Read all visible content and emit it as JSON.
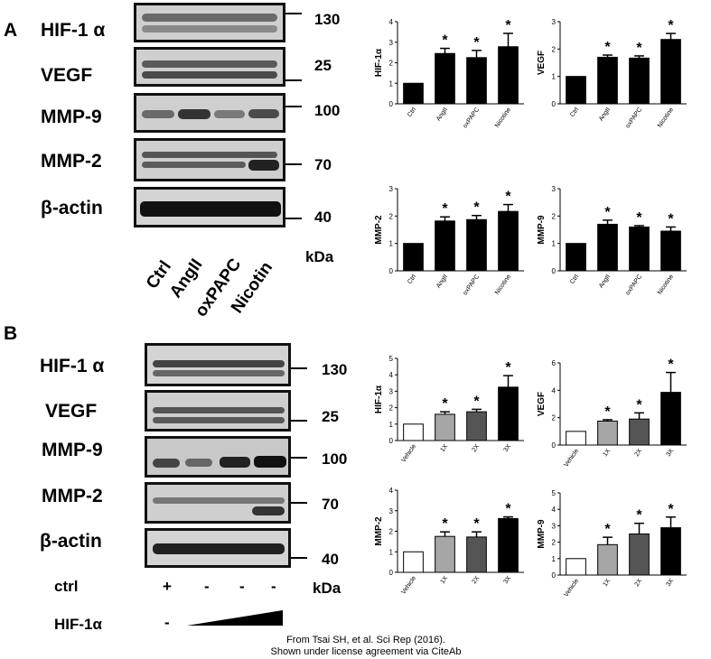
{
  "panels": {
    "a": {
      "letter": "A",
      "proteins": [
        "HIF-1 α",
        "VEGF",
        "MMP-9",
        "MMP-2",
        "β-actin"
      ],
      "markers": [
        "130",
        "25",
        "100",
        "70",
        "40"
      ],
      "kda_label": "kDa",
      "lanes": [
        "Ctrl",
        "AngII",
        "oxPAPC",
        "Nicotin"
      ]
    },
    "b": {
      "letter": "B",
      "proteins": [
        "HIF-1 α",
        "VEGF",
        "MMP-9",
        "MMP-2",
        "β-actin"
      ],
      "markers": [
        "130",
        "25",
        "100",
        "70",
        "40"
      ],
      "kda_label": "kDa",
      "ctrl_label": "ctrl",
      "ctrl_signs": [
        "+",
        "-",
        "-",
        "-"
      ],
      "hif_label": "HIF-1α",
      "hif_signs": [
        "-"
      ]
    }
  },
  "caption": {
    "line1": "From Tsai SH, et al. Sci Rep (2016).",
    "line2": "Shown under license agreement via CiteAb"
  },
  "colors": {
    "black_bar": "#000000",
    "white_bar": "#ffffff",
    "light_gray_bar": "#a6a6a6",
    "dark_gray_bar": "#555555"
  },
  "chart_data": [
    {
      "type": "bar",
      "ylabel": "HIF-1α",
      "categories": [
        "Ctrl",
        "AngII",
        "oxPAPC",
        "Nicotine"
      ],
      "values": [
        1.0,
        2.45,
        2.25,
        2.78
      ],
      "errors": [
        0,
        0.25,
        0.35,
        0.65
      ],
      "ylim": [
        0,
        4
      ],
      "yticks": [
        "0",
        "1",
        "2",
        "3",
        "4"
      ],
      "sig": [
        "",
        "*",
        "*",
        "*"
      ],
      "bar_colors": [
        "#000000",
        "#000000",
        "#000000",
        "#000000"
      ]
    },
    {
      "type": "bar",
      "ylabel": "VEGF",
      "categories": [
        "Ctrl",
        "AngII",
        "oxPAPC",
        "Nicotine"
      ],
      "values": [
        1.0,
        1.7,
        1.67,
        2.35
      ],
      "errors": [
        0,
        0.08,
        0.08,
        0.22
      ],
      "ylim": [
        0,
        3
      ],
      "yticks": [
        "0",
        "1",
        "2",
        "3"
      ],
      "sig": [
        "",
        "*",
        "*",
        "*"
      ],
      "bar_colors": [
        "#000000",
        "#000000",
        "#000000",
        "#000000"
      ]
    },
    {
      "type": "bar",
      "ylabel": "MMP-2",
      "categories": [
        "Ctrl",
        "AngII",
        "oxPAPC",
        "Nicotine"
      ],
      "values": [
        1.0,
        1.82,
        1.87,
        2.17
      ],
      "errors": [
        0,
        0.15,
        0.15,
        0.25
      ],
      "ylim": [
        0,
        3
      ],
      "yticks": [
        "0",
        "1",
        "2",
        "3"
      ],
      "sig": [
        "",
        "*",
        "*",
        "*"
      ],
      "bar_colors": [
        "#000000",
        "#000000",
        "#000000",
        "#000000"
      ]
    },
    {
      "type": "bar",
      "ylabel": "MMP-9",
      "categories": [
        "Ctrl",
        "AngII",
        "oxPAPC",
        "Nicotine"
      ],
      "values": [
        1.0,
        1.7,
        1.6,
        1.45
      ],
      "errors": [
        0,
        0.15,
        0.05,
        0.15
      ],
      "ylim": [
        0,
        3
      ],
      "yticks": [
        "0",
        "1",
        "2",
        "3"
      ],
      "sig": [
        "",
        "*",
        "*",
        "*"
      ],
      "bar_colors": [
        "#000000",
        "#000000",
        "#000000",
        "#000000"
      ]
    },
    {
      "type": "bar",
      "ylabel": "HIF-1α",
      "categories": [
        "Vehicle",
        "1X",
        "2X",
        "3X"
      ],
      "values": [
        1.0,
        1.6,
        1.75,
        3.25
      ],
      "errors": [
        0,
        0.15,
        0.15,
        0.7
      ],
      "ylim": [
        0,
        5
      ],
      "yticks": [
        "0",
        "1",
        "2",
        "3",
        "4",
        "5"
      ],
      "sig": [
        "",
        "*",
        "*",
        "*"
      ],
      "bar_colors": [
        "#ffffff",
        "#a6a6a6",
        "#555555",
        "#000000"
      ]
    },
    {
      "type": "bar",
      "ylabel": "VEGF",
      "categories": [
        "Vehicle",
        "1X",
        "2X",
        "3X"
      ],
      "values": [
        1.0,
        1.75,
        1.9,
        3.85
      ],
      "errors": [
        0,
        0.1,
        0.45,
        1.45
      ],
      "ylim": [
        0,
        6
      ],
      "yticks": [
        "0",
        "2",
        "4",
        "6"
      ],
      "sig": [
        "",
        "*",
        "*",
        "*"
      ],
      "bar_colors": [
        "#ffffff",
        "#a6a6a6",
        "#555555",
        "#000000"
      ]
    },
    {
      "type": "bar",
      "ylabel": "MMP-2",
      "categories": [
        "Vehicle",
        "1X",
        "2X",
        "3X"
      ],
      "values": [
        1.0,
        1.75,
        1.72,
        2.62
      ],
      "errors": [
        0,
        0.22,
        0.25,
        0.08
      ],
      "ylim": [
        0,
        4
      ],
      "yticks": [
        "0",
        "1",
        "2",
        "3",
        "4"
      ],
      "sig": [
        "",
        "*",
        "*",
        "*"
      ],
      "bar_colors": [
        "#ffffff",
        "#a6a6a6",
        "#555555",
        "#000000"
      ]
    },
    {
      "type": "bar",
      "ylabel": "MMP-9",
      "categories": [
        "Vehicle",
        "1X",
        "2X",
        "3X"
      ],
      "values": [
        1.0,
        1.85,
        2.5,
        2.88
      ],
      "errors": [
        0,
        0.45,
        0.65,
        0.65
      ],
      "ylim": [
        0,
        5
      ],
      "yticks": [
        "0",
        "1",
        "2",
        "3",
        "4",
        "5"
      ],
      "sig": [
        "",
        "*",
        "*",
        "*"
      ],
      "bar_colors": [
        "#ffffff",
        "#a6a6a6",
        "#555555",
        "#000000"
      ]
    }
  ]
}
